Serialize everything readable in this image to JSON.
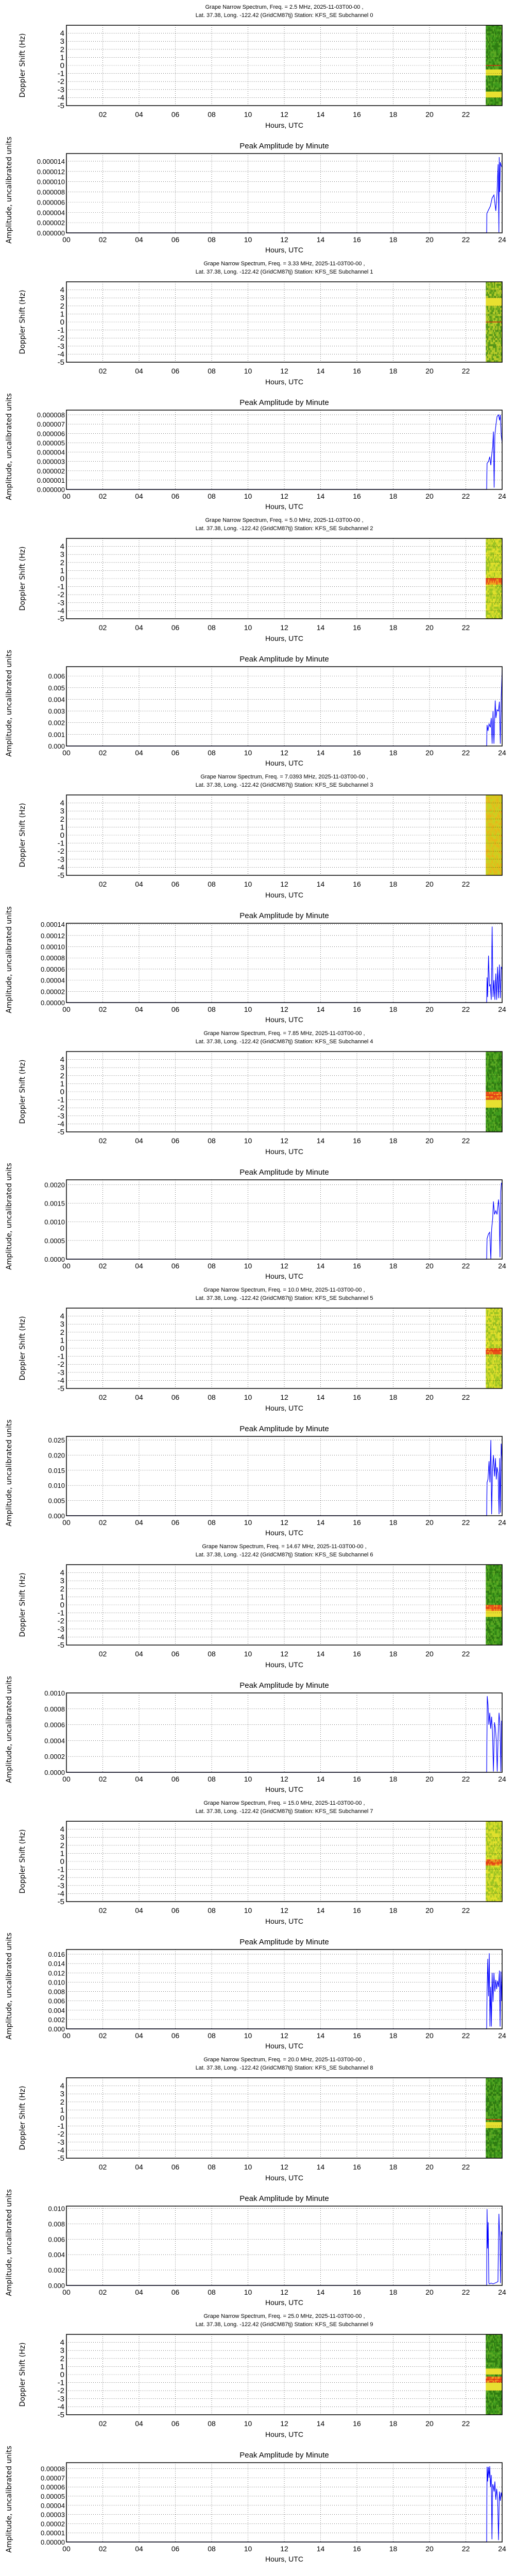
{
  "page": {
    "x_axis_label": "Hours, UTC",
    "spectrum_ylabel": "Doppler Shift (Hz)",
    "amplitude_title": "Peak Amplitude by Minute",
    "amplitude_ylabel": "Amplitude, uncalibrated units",
    "spectrum_xticks": [
      "02",
      "04",
      "06",
      "08",
      "10",
      "12",
      "14",
      "16",
      "18",
      "20",
      "22"
    ],
    "amplitude_xticks": [
      "00",
      "02",
      "04",
      "06",
      "08",
      "10",
      "12",
      "14",
      "16",
      "18",
      "20",
      "22",
      "24"
    ],
    "spectrum_yticks": [
      "4",
      "3",
      "2",
      "1",
      "0",
      "-1",
      "-2",
      "-3",
      "-4",
      "-5"
    ],
    "colors": {
      "line": "#0000ff",
      "spectro_green": "#3a8a1a",
      "spectro_yellow": "#e6e020",
      "spectro_red": "#e03010",
      "grid": "#000000"
    }
  },
  "chart_data": [
    {
      "subchannel": 0,
      "spectrum_title_1": "Grape Narrow Spectrum, Freq. = 2.5 MHz, 2025-11-03T00-00 ,",
      "spectrum_title_2": "Lat.  37.38, Long. -122.42 (GridCM87tj) Station: KFS_SE Subchannel 0",
      "spectrum": {
        "type": "heatmap",
        "x_start": 23.1,
        "x_end": 24.0,
        "ylim": [
          -5,
          5
        ],
        "dominant": "green",
        "hot_line_hz": 0.0,
        "features": [
          {
            "hz": -3.6,
            "color": "yellow"
          },
          {
            "hz": -0.8,
            "color": "yellow"
          }
        ]
      },
      "amplitude": {
        "type": "line",
        "yticks": [
          "0.000000",
          "0.000002",
          "0.000004",
          "0.000006",
          "0.000008",
          "0.000010",
          "0.000012",
          "0.000014"
        ],
        "ylim": [
          0,
          1.55e-05
        ],
        "x": [
          0,
          23.15,
          23.16,
          23.25,
          23.35,
          23.45,
          23.55,
          23.65,
          23.72,
          23.78,
          23.82,
          23.84,
          23.87,
          23.9,
          23.95,
          24.0
        ],
        "y": [
          0,
          0,
          3.8e-06,
          4.5e-06,
          5.2e-06,
          6.8e-06,
          7.4e-06,
          4.3e-06,
          7.8e-06,
          1.34e-05,
          1e-07,
          1.48e-05,
          8e-06,
          1.38e-05,
          1.31e-05,
          1.28e-05
        ]
      }
    },
    {
      "subchannel": 1,
      "spectrum_title_1": "Grape Narrow Spectrum, Freq. = 3.33 MHz, 2025-11-03T00-00 ,",
      "spectrum_title_2": "Lat.  37.38, Long. -122.42 (GridCM87tj) Station: KFS_SE Subchannel 1",
      "spectrum": {
        "type": "heatmap",
        "x_start": 23.1,
        "x_end": 24.0,
        "ylim": [
          -5,
          5
        ],
        "dominant": "green-yellow",
        "hot_line_hz": 0.0,
        "features": [
          {
            "hz": 2.5,
            "color": "yellow"
          }
        ]
      },
      "amplitude": {
        "type": "line",
        "yticks": [
          "0.000000",
          "0.000001",
          "0.000002",
          "0.000003",
          "0.000004",
          "0.000005",
          "0.000006",
          "0.000007",
          "0.000008"
        ],
        "ylim": [
          0,
          8.5e-06
        ],
        "x": [
          0,
          23.15,
          23.17,
          23.25,
          23.32,
          23.38,
          23.42,
          23.48,
          23.52,
          23.56,
          23.6,
          23.65,
          23.72,
          23.8,
          23.86,
          23.9,
          23.95,
          24.0
        ],
        "y": [
          0,
          0,
          2.8e-06,
          3e-06,
          3.5e-06,
          2.6e-06,
          3.6e-06,
          4.6e-06,
          6.2e-06,
          2e-07,
          5.8e-06,
          6.8e-06,
          7.8e-06,
          8e-06,
          7.4e-06,
          8e-06,
          5.8e-06,
          5e-06
        ]
      }
    },
    {
      "subchannel": 2,
      "spectrum_title_1": "Grape Narrow Spectrum, Freq. = 5.0 MHz, 2025-11-03T00-00 ,",
      "spectrum_title_2": "Lat.  37.38, Long. -122.42 (GridCM87tj) Station: KFS_SE Subchannel 2",
      "spectrum": {
        "type": "heatmap",
        "x_start": 23.1,
        "x_end": 24.0,
        "ylim": [
          -5,
          5
        ],
        "dominant": "yellow-green",
        "hot_line_hz": 0.0,
        "features": [
          {
            "hz": -0.4,
            "color": "red"
          }
        ]
      },
      "amplitude": {
        "type": "line",
        "yticks": [
          "0.000",
          "0.001",
          "0.002",
          "0.003",
          "0.004",
          "0.005",
          "0.006"
        ],
        "ylim": [
          0,
          0.0068
        ],
        "x": [
          0,
          23.15,
          23.17,
          23.22,
          23.28,
          23.35,
          23.4,
          23.45,
          23.5,
          23.55,
          23.62,
          23.66,
          23.72,
          23.8,
          23.85,
          23.9,
          23.95,
          24.0
        ],
        "y": [
          0,
          0,
          0.0018,
          0.0013,
          0.0019,
          0.0016,
          0.0024,
          0.0002,
          0.003,
          0.0002,
          0.0039,
          0.0024,
          0.0031,
          0.003,
          0.0038,
          0.0002,
          0.0042,
          0.0065
        ]
      }
    },
    {
      "subchannel": 3,
      "spectrum_title_1": "Grape Narrow Spectrum, Freq. = 7.0393 MHz, 2025-11-03T00-00 ,",
      "spectrum_title_2": "Lat.  37.38, Long. -122.42 (GridCM87tj) Station: KFS_SE Subchannel 3",
      "spectrum": {
        "type": "heatmap",
        "x_start": 23.1,
        "x_end": 24.0,
        "ylim": [
          -5,
          5
        ],
        "dominant": "yellow-orange",
        "hot_line_hz": null,
        "features": []
      },
      "amplitude": {
        "type": "line",
        "yticks": [
          "0.00000",
          "0.00002",
          "0.00004",
          "0.00006",
          "0.00008",
          "0.00010",
          "0.00012",
          "0.00014"
        ],
        "ylim": [
          0,
          0.000142
        ],
        "x": [
          0,
          23.15,
          23.17,
          23.2,
          23.25,
          23.3,
          23.35,
          23.4,
          23.45,
          23.5,
          23.55,
          23.6,
          23.65,
          23.7,
          23.75,
          23.8,
          23.85,
          23.9,
          23.95,
          24.0
        ],
        "y": [
          0,
          0,
          4.5e-05,
          1e-05,
          8.4e-05,
          3e-05,
          3.2e-05,
          5e-06,
          0.000136,
          1e-05,
          4e-05,
          5e-06,
          5.2e-05,
          5e-06,
          6.4e-05,
          8e-06,
          6.8e-05,
          8e-06,
          6.4e-05,
          6e-05
        ]
      }
    },
    {
      "subchannel": 4,
      "spectrum_title_1": "Grape Narrow Spectrum, Freq. = 7.85 MHz, 2025-11-03T00-00 ,",
      "spectrum_title_2": "Lat.  37.38, Long. -122.42 (GridCM87tj) Station: KFS_SE Subchannel 4",
      "spectrum": {
        "type": "heatmap",
        "x_start": 23.1,
        "x_end": 24.0,
        "ylim": [
          -5,
          5
        ],
        "dominant": "green",
        "hot_line_hz": -0.5,
        "features": [
          {
            "hz": -0.5,
            "color": "red"
          },
          {
            "hz": -1.5,
            "color": "yellow"
          }
        ]
      },
      "amplitude": {
        "type": "line",
        "yticks": [
          "0.0000",
          "0.0005",
          "0.0010",
          "0.0015",
          "0.0020"
        ],
        "ylim": [
          0,
          0.00213
        ],
        "x": [
          0,
          23.15,
          23.17,
          23.25,
          23.32,
          23.38,
          23.42,
          23.48,
          23.52,
          23.58,
          23.65,
          23.72,
          23.8,
          23.84,
          23.88,
          23.92,
          23.96,
          24.0
        ],
        "y": [
          0,
          0,
          0.00055,
          0.00068,
          0.00072,
          0.0,
          0.0008,
          0.0011,
          0.00155,
          0.0012,
          0.0013,
          0.0012,
          0.0016,
          0.0013,
          5e-05,
          0.0018,
          0.00205,
          0.002
        ]
      }
    },
    {
      "subchannel": 5,
      "spectrum_title_1": "Grape Narrow Spectrum, Freq. = 10.0 MHz, 2025-11-03T00-00 ,",
      "spectrum_title_2": "Lat.  37.38, Long. -122.42 (GridCM87tj) Station: KFS_SE Subchannel 5",
      "spectrum": {
        "type": "heatmap",
        "x_start": 23.1,
        "x_end": 24.0,
        "ylim": [
          -5,
          5
        ],
        "dominant": "yellow-green",
        "hot_line_hz": -0.3,
        "features": [
          {
            "hz": -0.3,
            "color": "red"
          }
        ]
      },
      "amplitude": {
        "type": "line",
        "yticks": [
          "0.000",
          "0.005",
          "0.010",
          "0.015",
          "0.020",
          "0.025"
        ],
        "ylim": [
          0,
          0.0262
        ],
        "x": [
          0,
          23.15,
          23.17,
          23.22,
          23.28,
          23.33,
          23.38,
          23.42,
          23.47,
          23.52,
          23.58,
          23.63,
          23.68,
          23.72,
          23.78,
          23.83,
          23.87,
          23.91,
          23.95,
          24.0
        ],
        "y": [
          0,
          0,
          0.011,
          0.012,
          0.018,
          0.011,
          0.025,
          0.0005,
          0.015,
          0.02,
          0.013,
          0.019,
          0.012,
          0.016,
          0.014,
          0.0005,
          0.019,
          0.001,
          0.0238,
          0.018
        ]
      }
    },
    {
      "subchannel": 6,
      "spectrum_title_1": "Grape Narrow Spectrum, Freq. = 14.67 MHz, 2025-11-03T00-00 ,",
      "spectrum_title_2": "Lat.  37.38, Long. -122.42 (GridCM87tj) Station: KFS_SE Subchannel 6",
      "spectrum": {
        "type": "heatmap",
        "x_start": 23.1,
        "x_end": 24.0,
        "ylim": [
          -5,
          5
        ],
        "dominant": "green",
        "hot_line_hz": -0.4,
        "features": [
          {
            "hz": -0.4,
            "color": "red"
          },
          {
            "hz": -1.2,
            "color": "yellow"
          }
        ]
      },
      "amplitude": {
        "type": "line",
        "yticks": [
          "0.0000",
          "0.0002",
          "0.0004",
          "0.0006",
          "0.0008",
          "0.0010"
        ],
        "ylim": [
          0,
          0.001
        ],
        "x": [
          0,
          23.15,
          23.18,
          23.22,
          23.27,
          23.32,
          23.37,
          23.42,
          23.47,
          23.52,
          23.58,
          23.63,
          23.68,
          23.73,
          23.78,
          23.83,
          23.88,
          23.93,
          23.97,
          24.0
        ],
        "y": [
          0,
          0,
          0.00096,
          0.00086,
          0.0006,
          0.00075,
          0.00055,
          0.0007,
          0.0005,
          1e-05,
          0.00063,
          0.00055,
          0.0004,
          1e-05,
          0.00045,
          0.00075,
          0.0006,
          1e-05,
          0.00065,
          0.0006
        ]
      }
    },
    {
      "subchannel": 7,
      "spectrum_title_1": "Grape Narrow Spectrum, Freq. = 15.0 MHz, 2025-11-03T00-00 ,",
      "spectrum_title_2": "Lat.  37.38, Long. -122.42 (GridCM87tj) Station: KFS_SE Subchannel 7",
      "spectrum": {
        "type": "heatmap",
        "x_start": 23.1,
        "x_end": 24.0,
        "ylim": [
          -5,
          5
        ],
        "dominant": "yellow-green",
        "hot_line_hz": -0.2,
        "features": [
          {
            "hz": -0.2,
            "color": "red"
          }
        ]
      },
      "amplitude": {
        "type": "line",
        "yticks": [
          "0.000",
          "0.002",
          "0.004",
          "0.006",
          "0.008",
          "0.010",
          "0.012",
          "0.014",
          "0.016"
        ],
        "ylim": [
          0,
          0.017
        ],
        "x": [
          0,
          23.15,
          23.17,
          23.21,
          23.25,
          23.29,
          23.33,
          23.37,
          23.41,
          23.45,
          23.5,
          23.55,
          23.6,
          23.65,
          23.7,
          23.75,
          23.8,
          23.85,
          23.89,
          23.93,
          23.97,
          24.0
        ],
        "y": [
          0,
          0,
          0.008,
          0.015,
          0.007,
          0.0162,
          0.0005,
          0.009,
          0.0005,
          0.012,
          0.0058,
          0.012,
          0.008,
          0.0105,
          0.0085,
          0.0103,
          0.009,
          0.0125,
          0.0005,
          0.0123,
          0.006,
          0.0125
        ]
      }
    },
    {
      "subchannel": 8,
      "spectrum_title_1": "Grape Narrow Spectrum, Freq. = 20.0 MHz, 2025-11-03T00-00 ,",
      "spectrum_title_2": "Lat.  37.38, Long. -122.42 (GridCM87tj) Station: KFS_SE Subchannel 8",
      "spectrum": {
        "type": "heatmap",
        "x_start": 23.1,
        "x_end": 24.0,
        "ylim": [
          -5,
          5
        ],
        "dominant": "green",
        "hot_line_hz": -0.2,
        "features": [
          {
            "hz": -0.8,
            "color": "yellow"
          }
        ]
      },
      "amplitude": {
        "type": "line",
        "yticks": [
          "0.000",
          "0.002",
          "0.004",
          "0.006",
          "0.008",
          "0.010"
        ],
        "ylim": [
          0,
          0.0103
        ],
        "x": [
          0,
          23.15,
          23.17,
          23.2,
          23.23,
          23.27,
          23.3,
          23.4,
          23.5,
          23.6,
          23.7,
          23.77,
          23.82,
          23.85,
          23.88,
          23.91,
          23.95,
          24.0
        ],
        "y": [
          0,
          0,
          0.0099,
          0.0048,
          0.0082,
          0.0003,
          0.0002,
          0.0003,
          0.0002,
          0.0003,
          0.0004,
          0.0005,
          0.0093,
          0.0074,
          0.006,
          0.0003,
          0.007,
          0.0065
        ]
      }
    },
    {
      "subchannel": 9,
      "spectrum_title_1": "Grape Narrow Spectrum, Freq. = 25.0 MHz, 2025-11-03T00-00 ,",
      "spectrum_title_2": "Lat.  37.38, Long. -122.42 (GridCM87tj) Station: KFS_SE Subchannel 9",
      "spectrum": {
        "type": "heatmap",
        "x_start": 23.1,
        "x_end": 24.0,
        "ylim": [
          -5,
          5
        ],
        "dominant": "green",
        "hot_line_hz": -0.6,
        "features": [
          {
            "hz": -0.6,
            "color": "red"
          },
          {
            "hz": 0.3,
            "color": "yellow"
          },
          {
            "hz": -1.5,
            "color": "yellow"
          }
        ]
      },
      "amplitude": {
        "type": "line",
        "yticks": [
          "0.00000",
          "0.00001",
          "0.00002",
          "0.00003",
          "0.00004",
          "0.00005",
          "0.00006",
          "0.00007",
          "0.00008"
        ],
        "ylim": [
          0,
          8.65e-05
        ],
        "x": [
          0,
          23.15,
          23.17,
          23.2,
          23.24,
          23.28,
          23.32,
          23.36,
          23.4,
          23.44,
          23.48,
          23.52,
          23.56,
          23.6,
          23.65,
          23.7,
          23.75,
          23.8,
          23.85,
          23.9,
          23.95,
          24.0
        ],
        "y": [
          0,
          0,
          8.2e-05,
          6.6e-05,
          8.2e-05,
          7e-05,
          8.25e-05,
          6e-05,
          7.3e-05,
          3e-06,
          6.3e-05,
          6e-05,
          5.5e-05,
          6.6e-05,
          4.6e-05,
          5.8e-05,
          4.8e-05,
          2e-06,
          5.5e-05,
          4.5e-05,
          5.4e-05,
          4.8e-05
        ]
      }
    }
  ]
}
